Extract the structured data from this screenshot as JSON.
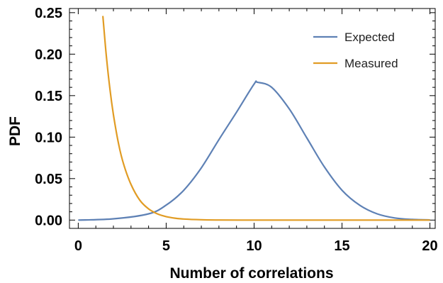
{
  "chart_data": {
    "type": "line",
    "xlabel": "Number of correlations",
    "ylabel": "PDF",
    "xlim": [
      -0.5,
      20.3
    ],
    "ylim": [
      -0.01,
      0.255
    ],
    "x_ticks": [
      0,
      5,
      10,
      15,
      20
    ],
    "x_tick_labels": [
      "0",
      "5",
      "10",
      "15",
      "20"
    ],
    "y_ticks": [
      0.0,
      0.05,
      0.1,
      0.15,
      0.2,
      0.25
    ],
    "y_tick_labels": [
      "0.00",
      "0.05",
      "0.10",
      "0.15",
      "0.20",
      "0.25"
    ],
    "grid": false,
    "legend_position": "top-right",
    "series": [
      {
        "name": "Expected",
        "color": "#5e81b5",
        "x": [
          0,
          2,
          4,
          5,
          6,
          7,
          8,
          9,
          10,
          10.2,
          11,
          12,
          13,
          14,
          15,
          16,
          17,
          18,
          19,
          20
        ],
        "y": [
          0.0,
          0.0015,
          0.0075,
          0.018,
          0.036,
          0.063,
          0.097,
          0.13,
          0.164,
          0.166,
          0.16,
          0.134,
          0.099,
          0.064,
          0.036,
          0.018,
          0.0075,
          0.0026,
          0.0008,
          0.0002
        ]
      },
      {
        "name": "Measured",
        "color": "#e19c24",
        "x": [
          1.4,
          1.6,
          1.8,
          2.0,
          2.3,
          2.6,
          3.0,
          3.5,
          4.0,
          4.5,
          5.0,
          5.5,
          6.0,
          7.0,
          8.0,
          10.0,
          12.0,
          16.0,
          20.0
        ],
        "y": [
          0.246,
          0.197,
          0.158,
          0.127,
          0.091,
          0.066,
          0.043,
          0.024,
          0.0135,
          0.0075,
          0.0042,
          0.0023,
          0.0013,
          0.0004,
          0.0001,
          0.0,
          0.0,
          0.0,
          0.0
        ]
      }
    ]
  }
}
